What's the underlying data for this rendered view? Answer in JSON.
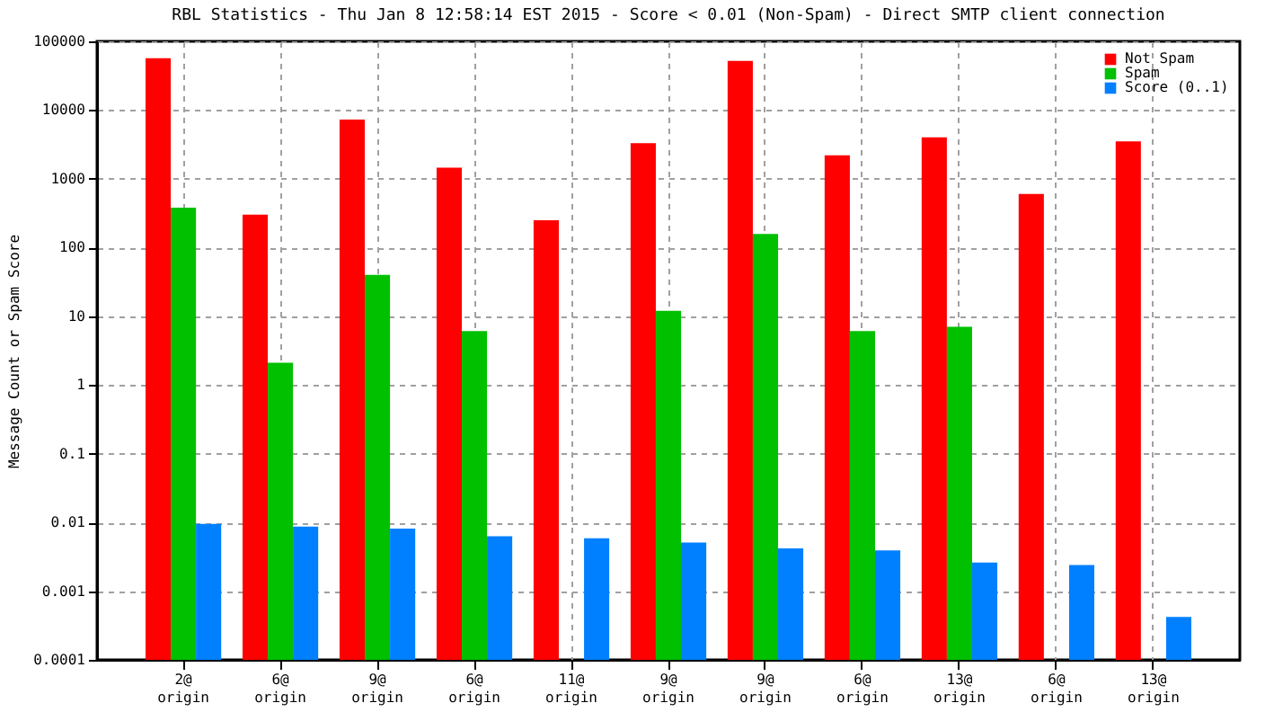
{
  "chart_data": {
    "type": "bar",
    "title": "RBL Statistics - Thu Jan  8 12:58:14 EST 2015 - Score < 0.01 (Non-Spam) - Direct SMTP client connection",
    "ylabel": "Message Count or Spam Score",
    "categories": [
      "2@ origin",
      "6@ origin",
      "9@ origin",
      "6@ origin",
      "11@ origin",
      "9@ origin",
      "9@ origin",
      "6@ origin",
      "13@ origin",
      "6@ origin",
      "13@ origin"
    ],
    "series": [
      {
        "name": "Not Spam",
        "color": "#ff0000",
        "values": [
          57000,
          300,
          7300,
          1450,
          250,
          3300,
          52000,
          2200,
          4000,
          600,
          3500
        ]
      },
      {
        "name": "Spam",
        "color": "#00c000",
        "values": [
          380,
          2.1,
          40,
          6.1,
          null,
          12,
          157,
          6.1,
          7,
          null,
          null
        ]
      },
      {
        "name": "Score (0..1)",
        "color": "#0080ff",
        "values": [
          0.0095,
          0.0087,
          0.0081,
          0.0063,
          0.0059,
          0.0051,
          0.0042,
          0.0039,
          0.0026,
          0.0024,
          0.00042
        ]
      }
    ],
    "log": true,
    "ylim": [
      0.0001,
      100000
    ],
    "yticks": [
      0.0001,
      0.001,
      0.01,
      0.1,
      1,
      10,
      100,
      1000,
      10000,
      100000
    ],
    "grid": true,
    "legend": "top right"
  }
}
